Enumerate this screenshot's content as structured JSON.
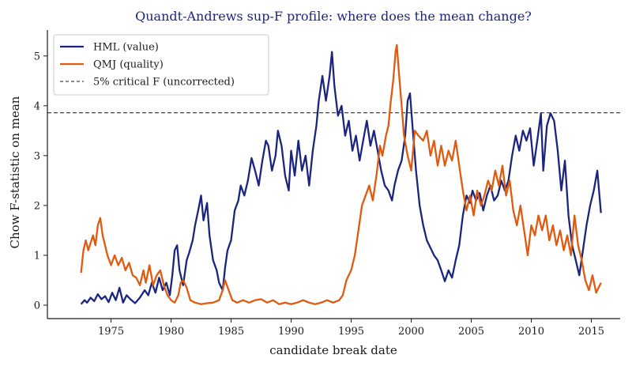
{
  "chart_data": {
    "type": "line",
    "title": "Quandt-Andrews sup-F profile: where does the mean change?",
    "xlabel": "candidate break date",
    "ylabel": "Chow F-statistic on mean",
    "xlim": [
      1969.7,
      2017.4
    ],
    "ylim": [
      -0.27,
      5.52
    ],
    "x_ticks": [
      1975,
      1980,
      1985,
      1990,
      1995,
      2000,
      2005,
      2010,
      2015
    ],
    "y_ticks": [
      0,
      1,
      2,
      3,
      4,
      5
    ],
    "grid": false,
    "legend_position": "top-left",
    "critical_value": {
      "name": "5% critical F (uncorrected)",
      "value": 3.86,
      "color": "#444444",
      "style": "dashed"
    },
    "series": [
      {
        "name": "HML (value)",
        "color": "#1b2580",
        "points": [
          [
            1972.5,
            0.02
          ],
          [
            1972.8,
            0.1
          ],
          [
            1973.0,
            0.05
          ],
          [
            1973.3,
            0.15
          ],
          [
            1973.6,
            0.08
          ],
          [
            1973.9,
            0.22
          ],
          [
            1974.2,
            0.12
          ],
          [
            1974.5,
            0.18
          ],
          [
            1974.8,
            0.06
          ],
          [
            1975.1,
            0.25
          ],
          [
            1975.4,
            0.1
          ],
          [
            1975.7,
            0.35
          ],
          [
            1976.0,
            0.05
          ],
          [
            1976.3,
            0.2
          ],
          [
            1976.6,
            0.12
          ],
          [
            1977.0,
            0.04
          ],
          [
            1977.4,
            0.15
          ],
          [
            1977.8,
            0.3
          ],
          [
            1978.1,
            0.2
          ],
          [
            1978.4,
            0.45
          ],
          [
            1978.7,
            0.25
          ],
          [
            1979.0,
            0.55
          ],
          [
            1979.3,
            0.3
          ],
          [
            1979.6,
            0.45
          ],
          [
            1979.9,
            0.2
          ],
          [
            1980.1,
            0.6
          ],
          [
            1980.3,
            1.1
          ],
          [
            1980.5,
            1.2
          ],
          [
            1980.7,
            0.7
          ],
          [
            1981.0,
            0.4
          ],
          [
            1981.3,
            0.9
          ],
          [
            1981.5,
            1.05
          ],
          [
            1981.8,
            1.3
          ],
          [
            1982.0,
            1.6
          ],
          [
            1982.3,
            1.95
          ],
          [
            1982.5,
            2.2
          ],
          [
            1982.7,
            1.7
          ],
          [
            1983.0,
            2.05
          ],
          [
            1983.2,
            1.4
          ],
          [
            1983.5,
            0.9
          ],
          [
            1983.8,
            0.7
          ],
          [
            1984.0,
            0.45
          ],
          [
            1984.3,
            0.3
          ],
          [
            1984.5,
            0.75
          ],
          [
            1984.7,
            1.1
          ],
          [
            1985.0,
            1.3
          ],
          [
            1985.3,
            1.9
          ],
          [
            1985.6,
            2.1
          ],
          [
            1985.8,
            2.4
          ],
          [
            1986.1,
            2.2
          ],
          [
            1986.4,
            2.5
          ],
          [
            1986.7,
            2.95
          ],
          [
            1987.0,
            2.7
          ],
          [
            1987.3,
            2.4
          ],
          [
            1987.6,
            2.9
          ],
          [
            1987.9,
            3.3
          ],
          [
            1988.1,
            3.2
          ],
          [
            1988.4,
            2.7
          ],
          [
            1988.7,
            3.0
          ],
          [
            1988.9,
            3.5
          ],
          [
            1989.2,
            3.2
          ],
          [
            1989.5,
            2.6
          ],
          [
            1989.8,
            2.3
          ],
          [
            1990.0,
            3.1
          ],
          [
            1990.3,
            2.6
          ],
          [
            1990.6,
            3.3
          ],
          [
            1990.9,
            2.7
          ],
          [
            1991.2,
            3.0
          ],
          [
            1991.5,
            2.4
          ],
          [
            1991.8,
            3.1
          ],
          [
            1992.1,
            3.6
          ],
          [
            1992.3,
            4.1
          ],
          [
            1992.6,
            4.6
          ],
          [
            1992.9,
            4.1
          ],
          [
            1993.2,
            4.6
          ],
          [
            1993.4,
            5.08
          ],
          [
            1993.6,
            4.4
          ],
          [
            1993.9,
            3.8
          ],
          [
            1994.2,
            4.0
          ],
          [
            1994.5,
            3.4
          ],
          [
            1994.8,
            3.7
          ],
          [
            1995.1,
            3.1
          ],
          [
            1995.4,
            3.4
          ],
          [
            1995.7,
            2.9
          ],
          [
            1996.0,
            3.3
          ],
          [
            1996.3,
            3.7
          ],
          [
            1996.6,
            3.2
          ],
          [
            1996.9,
            3.5
          ],
          [
            1997.2,
            3.1
          ],
          [
            1997.5,
            2.7
          ],
          [
            1997.8,
            2.4
          ],
          [
            1998.1,
            2.3
          ],
          [
            1998.4,
            2.1
          ],
          [
            1998.6,
            2.4
          ],
          [
            1998.9,
            2.7
          ],
          [
            1999.2,
            2.9
          ],
          [
            1999.5,
            3.4
          ],
          [
            1999.7,
            4.1
          ],
          [
            1999.9,
            4.25
          ],
          [
            2000.1,
            3.6
          ],
          [
            2000.4,
            2.7
          ],
          [
            2000.7,
            2.0
          ],
          [
            2001.0,
            1.6
          ],
          [
            2001.3,
            1.3
          ],
          [
            2001.6,
            1.15
          ],
          [
            2001.9,
            1.0
          ],
          [
            2002.2,
            0.9
          ],
          [
            2002.5,
            0.7
          ],
          [
            2002.8,
            0.48
          ],
          [
            2003.1,
            0.7
          ],
          [
            2003.4,
            0.55
          ],
          [
            2003.7,
            0.9
          ],
          [
            2004.0,
            1.2
          ],
          [
            2004.3,
            1.8
          ],
          [
            2004.6,
            2.2
          ],
          [
            2004.9,
            2.05
          ],
          [
            2005.1,
            2.3
          ],
          [
            2005.4,
            2.1
          ],
          [
            2005.7,
            2.25
          ],
          [
            2006.0,
            1.9
          ],
          [
            2006.3,
            2.2
          ],
          [
            2006.6,
            2.4
          ],
          [
            2006.9,
            2.1
          ],
          [
            2007.2,
            2.2
          ],
          [
            2007.5,
            2.5
          ],
          [
            2007.8,
            2.3
          ],
          [
            2008.1,
            2.5
          ],
          [
            2008.4,
            3.0
          ],
          [
            2008.7,
            3.4
          ],
          [
            2009.0,
            3.1
          ],
          [
            2009.3,
            3.5
          ],
          [
            2009.6,
            3.3
          ],
          [
            2009.9,
            3.55
          ],
          [
            2010.2,
            2.8
          ],
          [
            2010.5,
            3.3
          ],
          [
            2010.8,
            3.85
          ],
          [
            2011.0,
            2.7
          ],
          [
            2011.3,
            3.6
          ],
          [
            2011.6,
            3.85
          ],
          [
            2011.9,
            3.7
          ],
          [
            2012.2,
            3.1
          ],
          [
            2012.5,
            2.3
          ],
          [
            2012.8,
            2.9
          ],
          [
            2013.1,
            1.8
          ],
          [
            2013.4,
            1.2
          ],
          [
            2013.7,
            0.9
          ],
          [
            2014.0,
            0.6
          ],
          [
            2014.3,
            1.1
          ],
          [
            2014.6,
            1.6
          ],
          [
            2014.9,
            2.0
          ],
          [
            2015.2,
            2.3
          ],
          [
            2015.5,
            2.7
          ],
          [
            2015.8,
            1.85
          ]
        ]
      },
      {
        "name": "QMJ (quality)",
        "color": "#e05a0f",
        "points": [
          [
            1972.5,
            0.65
          ],
          [
            1972.7,
            1.1
          ],
          [
            1972.9,
            1.3
          ],
          [
            1973.1,
            1.1
          ],
          [
            1973.3,
            1.25
          ],
          [
            1973.5,
            1.4
          ],
          [
            1973.7,
            1.2
          ],
          [
            1973.9,
            1.6
          ],
          [
            1974.1,
            1.75
          ],
          [
            1974.3,
            1.4
          ],
          [
            1974.5,
            1.2
          ],
          [
            1974.7,
            1.0
          ],
          [
            1975.0,
            0.8
          ],
          [
            1975.3,
            1.0
          ],
          [
            1975.6,
            0.8
          ],
          [
            1975.9,
            0.95
          ],
          [
            1976.2,
            0.7
          ],
          [
            1976.5,
            0.85
          ],
          [
            1976.8,
            0.6
          ],
          [
            1977.1,
            0.55
          ],
          [
            1977.4,
            0.4
          ],
          [
            1977.7,
            0.7
          ],
          [
            1977.9,
            0.45
          ],
          [
            1978.2,
            0.8
          ],
          [
            1978.5,
            0.4
          ],
          [
            1978.8,
            0.6
          ],
          [
            1979.1,
            0.7
          ],
          [
            1979.4,
            0.4
          ],
          [
            1979.7,
            0.2
          ],
          [
            1980.0,
            0.1
          ],
          [
            1980.3,
            0.05
          ],
          [
            1980.6,
            0.2
          ],
          [
            1980.8,
            0.45
          ],
          [
            1981.0,
            0.5
          ],
          [
            1981.3,
            0.35
          ],
          [
            1981.6,
            0.1
          ],
          [
            1982.0,
            0.05
          ],
          [
            1982.5,
            0.02
          ],
          [
            1983.0,
            0.04
          ],
          [
            1983.5,
            0.05
          ],
          [
            1984.0,
            0.1
          ],
          [
            1984.3,
            0.3
          ],
          [
            1984.5,
            0.5
          ],
          [
            1984.8,
            0.3
          ],
          [
            1985.1,
            0.1
          ],
          [
            1985.5,
            0.05
          ],
          [
            1986.0,
            0.1
          ],
          [
            1986.5,
            0.05
          ],
          [
            1987.0,
            0.1
          ],
          [
            1987.5,
            0.12
          ],
          [
            1988.0,
            0.05
          ],
          [
            1988.5,
            0.1
          ],
          [
            1989.0,
            0.02
          ],
          [
            1989.5,
            0.05
          ],
          [
            1990.0,
            0.02
          ],
          [
            1990.5,
            0.05
          ],
          [
            1991.0,
            0.1
          ],
          [
            1991.5,
            0.05
          ],
          [
            1992.0,
            0.02
          ],
          [
            1992.5,
            0.05
          ],
          [
            1993.0,
            0.1
          ],
          [
            1993.5,
            0.05
          ],
          [
            1994.0,
            0.1
          ],
          [
            1994.3,
            0.2
          ],
          [
            1994.6,
            0.5
          ],
          [
            1995.0,
            0.7
          ],
          [
            1995.3,
            1.0
          ],
          [
            1995.6,
            1.5
          ],
          [
            1995.9,
            2.0
          ],
          [
            1996.2,
            2.2
          ],
          [
            1996.5,
            2.4
          ],
          [
            1996.8,
            2.1
          ],
          [
            1997.1,
            2.6
          ],
          [
            1997.4,
            3.2
          ],
          [
            1997.6,
            3.0
          ],
          [
            1997.9,
            3.4
          ],
          [
            1998.1,
            3.6
          ],
          [
            1998.3,
            4.1
          ],
          [
            1998.5,
            4.5
          ],
          [
            1998.7,
            5.1
          ],
          [
            1998.8,
            5.22
          ],
          [
            1999.0,
            4.6
          ],
          [
            1999.2,
            4.0
          ],
          [
            1999.4,
            3.4
          ],
          [
            1999.7,
            3.0
          ],
          [
            2000.0,
            2.7
          ],
          [
            2000.3,
            3.5
          ],
          [
            2000.6,
            3.4
          ],
          [
            2001.0,
            3.3
          ],
          [
            2001.3,
            3.5
          ],
          [
            2001.6,
            3.0
          ],
          [
            2001.9,
            3.3
          ],
          [
            2002.2,
            2.8
          ],
          [
            2002.5,
            3.2
          ],
          [
            2002.8,
            2.8
          ],
          [
            2003.1,
            3.1
          ],
          [
            2003.4,
            2.9
          ],
          [
            2003.7,
            3.3
          ],
          [
            2004.0,
            2.8
          ],
          [
            2004.3,
            2.3
          ],
          [
            2004.6,
            1.9
          ],
          [
            2004.9,
            2.2
          ],
          [
            2005.2,
            1.8
          ],
          [
            2005.5,
            2.3
          ],
          [
            2005.8,
            2.0
          ],
          [
            2006.1,
            2.2
          ],
          [
            2006.4,
            2.5
          ],
          [
            2006.7,
            2.3
          ],
          [
            2007.0,
            2.7
          ],
          [
            2007.3,
            2.4
          ],
          [
            2007.6,
            2.8
          ],
          [
            2007.9,
            2.2
          ],
          [
            2008.2,
            2.5
          ],
          [
            2008.5,
            1.9
          ],
          [
            2008.8,
            1.6
          ],
          [
            2009.1,
            2.0
          ],
          [
            2009.4,
            1.5
          ],
          [
            2009.7,
            1.0
          ],
          [
            2010.0,
            1.6
          ],
          [
            2010.3,
            1.4
          ],
          [
            2010.6,
            1.8
          ],
          [
            2010.9,
            1.5
          ],
          [
            2011.2,
            1.8
          ],
          [
            2011.5,
            1.3
          ],
          [
            2011.8,
            1.6
          ],
          [
            2012.1,
            1.2
          ],
          [
            2012.4,
            1.5
          ],
          [
            2012.7,
            1.1
          ],
          [
            2013.0,
            1.4
          ],
          [
            2013.3,
            1.0
          ],
          [
            2013.6,
            1.8
          ],
          [
            2013.9,
            1.2
          ],
          [
            2014.2,
            0.9
          ],
          [
            2014.5,
            0.5
          ],
          [
            2014.8,
            0.3
          ],
          [
            2015.1,
            0.6
          ],
          [
            2015.4,
            0.25
          ],
          [
            2015.8,
            0.45
          ]
        ]
      }
    ]
  }
}
